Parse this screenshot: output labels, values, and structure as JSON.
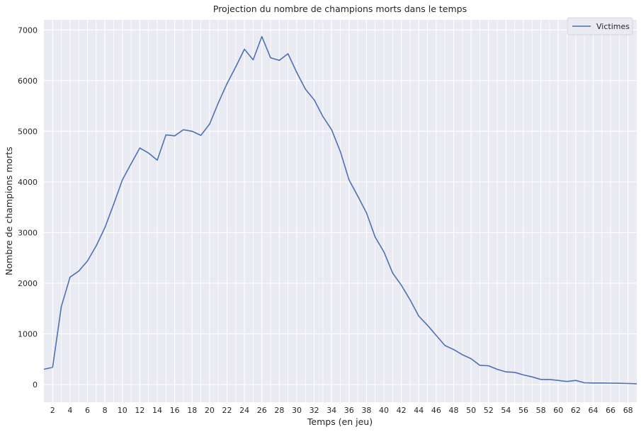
{
  "chart_data": {
    "type": "line",
    "title": "Projection du nombre de champions morts dans le temps",
    "xlabel": "Temps (en jeu)",
    "ylabel": "Nombre de champions morts",
    "xlim": [
      1,
      69
    ],
    "ylim": [
      -350,
      7200
    ],
    "x_ticks": [
      2,
      4,
      6,
      8,
      10,
      12,
      14,
      16,
      18,
      20,
      22,
      24,
      26,
      28,
      30,
      32,
      34,
      36,
      38,
      40,
      42,
      44,
      46,
      48,
      50,
      52,
      54,
      56,
      58,
      60,
      62,
      64,
      66,
      68
    ],
    "y_ticks": [
      0,
      1000,
      2000,
      3000,
      4000,
      5000,
      6000,
      7000
    ],
    "grid": true,
    "legend": "top-right",
    "background": "#eaeaf2",
    "series": [
      {
        "name": "Victimes",
        "color": "#4c72b0",
        "x": [
          1,
          2,
          3,
          4,
          5,
          6,
          7,
          8,
          9,
          10,
          11,
          12,
          13,
          14,
          15,
          16,
          17,
          18,
          19,
          20,
          21,
          22,
          23,
          24,
          25,
          26,
          27,
          28,
          29,
          30,
          31,
          32,
          33,
          34,
          35,
          36,
          37,
          38,
          39,
          40,
          41,
          42,
          43,
          44,
          45,
          46,
          47,
          48,
          49,
          50,
          51,
          52,
          53,
          54,
          55,
          56,
          57,
          58,
          59,
          60,
          61,
          62,
          63,
          64,
          65,
          66,
          67,
          68,
          69
        ],
        "values": [
          300,
          340,
          1540,
          2120,
          2240,
          2440,
          2740,
          3100,
          3560,
          4040,
          4360,
          4670,
          4570,
          4430,
          4930,
          4910,
          5030,
          5000,
          4920,
          5140,
          5560,
          5940,
          6270,
          6620,
          6410,
          6870,
          6450,
          6400,
          6530,
          6160,
          5830,
          5620,
          5290,
          5030,
          4600,
          4040,
          3720,
          3390,
          2910,
          2620,
          2200,
          1960,
          1670,
          1350,
          1170,
          970,
          770,
          690,
          590,
          510,
          380,
          370,
          300,
          250,
          240,
          190,
          150,
          100,
          100,
          80,
          60,
          80,
          35,
          30,
          30,
          28,
          25,
          20,
          15
        ]
      }
    ]
  }
}
